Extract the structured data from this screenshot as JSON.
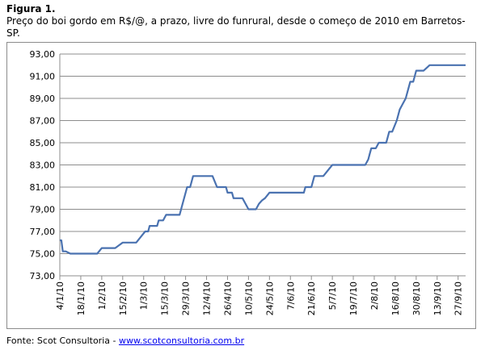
{
  "figure_label": "Figura 1.",
  "caption": "Preço do boi gordo em R$/@, a prazo, livre do funrural, desde o começo de 2010 em Barretos-SP.",
  "footer": {
    "prefix": "Fonte: Scot Consultoria - ",
    "link_text": "www.scotconsultoria.com.br"
  },
  "colors": {
    "line": "#4a72b0",
    "grid": "#8c8c8c",
    "frame": "#8c8c8c"
  },
  "chart_data": {
    "type": "line",
    "title": "",
    "xlabel": "",
    "ylabel": "",
    "ylim": [
      73,
      93
    ],
    "yticks": [
      "73,00",
      "75,00",
      "77,00",
      "79,00",
      "81,00",
      "83,00",
      "85,00",
      "87,00",
      "89,00",
      "91,00",
      "93,00"
    ],
    "xticks": [
      "4/1/10",
      "18/1/10",
      "1/2/10",
      "15/2/10",
      "1/3/10",
      "15/3/10",
      "29/3/10",
      "12/4/10",
      "26/4/10",
      "10/5/10",
      "24/5/10",
      "7/6/10",
      "21/6/10",
      "5/7/10",
      "19/7/10",
      "2/8/10",
      "16/8/10",
      "30/8/10",
      "13/9/10",
      "27/9/10"
    ],
    "grid": "horizontal",
    "series": [
      {
        "x": [
          "2010-01-04",
          "2010-01-05",
          "2010-01-06",
          "2010-01-08",
          "2010-01-11",
          "2010-01-13",
          "2010-01-29",
          "2010-02-01",
          "2010-02-10",
          "2010-02-13",
          "2010-02-15",
          "2010-02-24",
          "2010-02-27",
          "2010-03-02",
          "2010-03-04",
          "2010-03-05",
          "2010-03-07",
          "2010-03-10",
          "2010-03-11",
          "2010-03-14",
          "2010-03-16",
          "2010-03-17",
          "2010-03-25",
          "2010-03-27",
          "2010-03-30",
          "2010-04-01",
          "2010-04-03",
          "2010-04-05",
          "2010-04-06",
          "2010-04-16",
          "2010-04-19",
          "2010-04-25",
          "2010-04-26",
          "2010-04-29",
          "2010-04-30",
          "2010-05-06",
          "2010-05-08",
          "2010-05-10",
          "2010-05-15",
          "2010-05-17",
          "2010-05-19",
          "2010-05-21",
          "2010-05-24",
          "2010-06-16",
          "2010-06-17",
          "2010-06-21",
          "2010-06-23",
          "2010-06-28",
          "2010-06-29",
          "2010-07-05",
          "2010-07-06",
          "2010-07-27",
          "2010-07-29",
          "2010-07-30",
          "2010-07-31",
          "2010-08-03",
          "2010-08-05",
          "2010-08-10",
          "2010-08-12",
          "2010-08-14",
          "2010-08-17",
          "2010-08-19",
          "2010-08-21",
          "2010-08-23",
          "2010-08-26",
          "2010-08-28",
          "2010-08-30",
          "2010-09-01",
          "2010-09-04",
          "2010-09-08",
          "2010-09-11",
          "2010-10-02"
        ],
        "values": [
          76.2,
          76.2,
          75.2,
          75.2,
          75.0,
          75.0,
          75.0,
          75.5,
          75.5,
          75.8,
          76.0,
          76.0,
          76.5,
          77.0,
          77.0,
          77.5,
          77.5,
          77.5,
          78.0,
          78.0,
          78.5,
          78.5,
          78.5,
          79.5,
          81.0,
          81.0,
          82.0,
          82.0,
          82.0,
          82.0,
          81.0,
          81.0,
          80.5,
          80.5,
          80.0,
          80.0,
          79.5,
          79.0,
          79.0,
          79.5,
          79.8,
          80.0,
          80.5,
          80.5,
          81.0,
          81.0,
          82.0,
          82.0,
          82.0,
          83.0,
          83.0,
          83.0,
          83.5,
          84.0,
          84.5,
          84.5,
          85.0,
          85.0,
          86.0,
          86.0,
          87.0,
          88.0,
          88.5,
          89.0,
          90.5,
          90.5,
          91.5,
          91.5,
          91.5,
          92.0,
          92.0,
          92.0
        ]
      }
    ]
  }
}
